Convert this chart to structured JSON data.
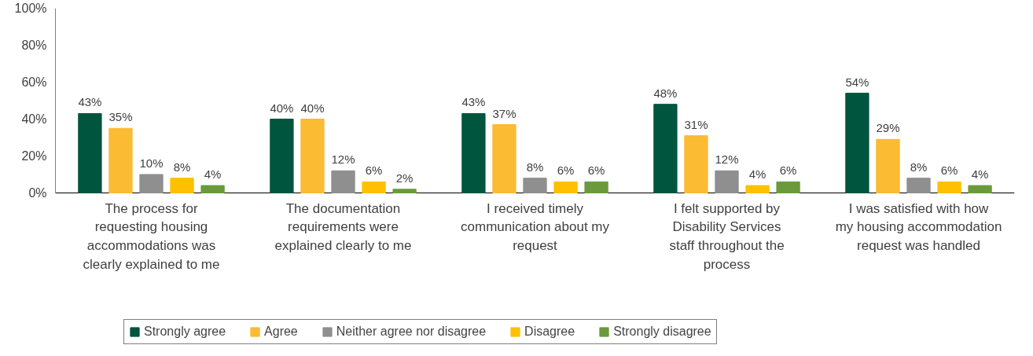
{
  "chart_data": {
    "type": "bar",
    "categories": [
      "The process for requesting housing accommodations was clearly explained to me",
      "The documentation requirements were explained clearly to me",
      "I received timely communication about my request",
      "I felt supported by Disability Services staff throughout the process",
      "I was satisfied with how my housing accommodation request was handled"
    ],
    "series": [
      {
        "name": "Strongly agree",
        "color": "#00553e",
        "values": [
          43,
          40,
          43,
          48,
          54
        ],
        "value_labels": [
          "43%",
          "40%",
          "43%",
          "48%",
          "54%"
        ]
      },
      {
        "name": "Agree",
        "color": "#fbbb33",
        "values": [
          35,
          40,
          37,
          31,
          29
        ],
        "value_labels": [
          "35%",
          "40%",
          "37%",
          "31%",
          "29%"
        ]
      },
      {
        "name": "Neither agree nor disagree",
        "color": "#8f8f8f",
        "values": [
          10,
          12,
          8,
          12,
          8
        ],
        "value_labels": [
          "10%",
          "12%",
          "8%",
          "12%",
          "8%"
        ]
      },
      {
        "name": "Disagree",
        "color": "#ffc000",
        "values": [
          8,
          6,
          6,
          4,
          6
        ],
        "value_labels": [
          "8%",
          "6%",
          "6%",
          "4%",
          "6%"
        ]
      },
      {
        "name": "Strongly disagree",
        "color": "#6b9a3c",
        "values": [
          4,
          2,
          6,
          6,
          4
        ],
        "value_labels": [
          "4%",
          "2%",
          "6%",
          "6%",
          "4%"
        ]
      }
    ],
    "ylim": [
      0,
      100
    ],
    "yticks": [
      {
        "value": 0,
        "label": "0%"
      },
      {
        "value": 20,
        "label": "20%"
      },
      {
        "value": 40,
        "label": "40%"
      },
      {
        "value": 60,
        "label": "60%"
      },
      {
        "value": 80,
        "label": "80%"
      },
      {
        "value": 100,
        "label": "100%"
      }
    ],
    "legend": "bottom",
    "grid": false
  }
}
